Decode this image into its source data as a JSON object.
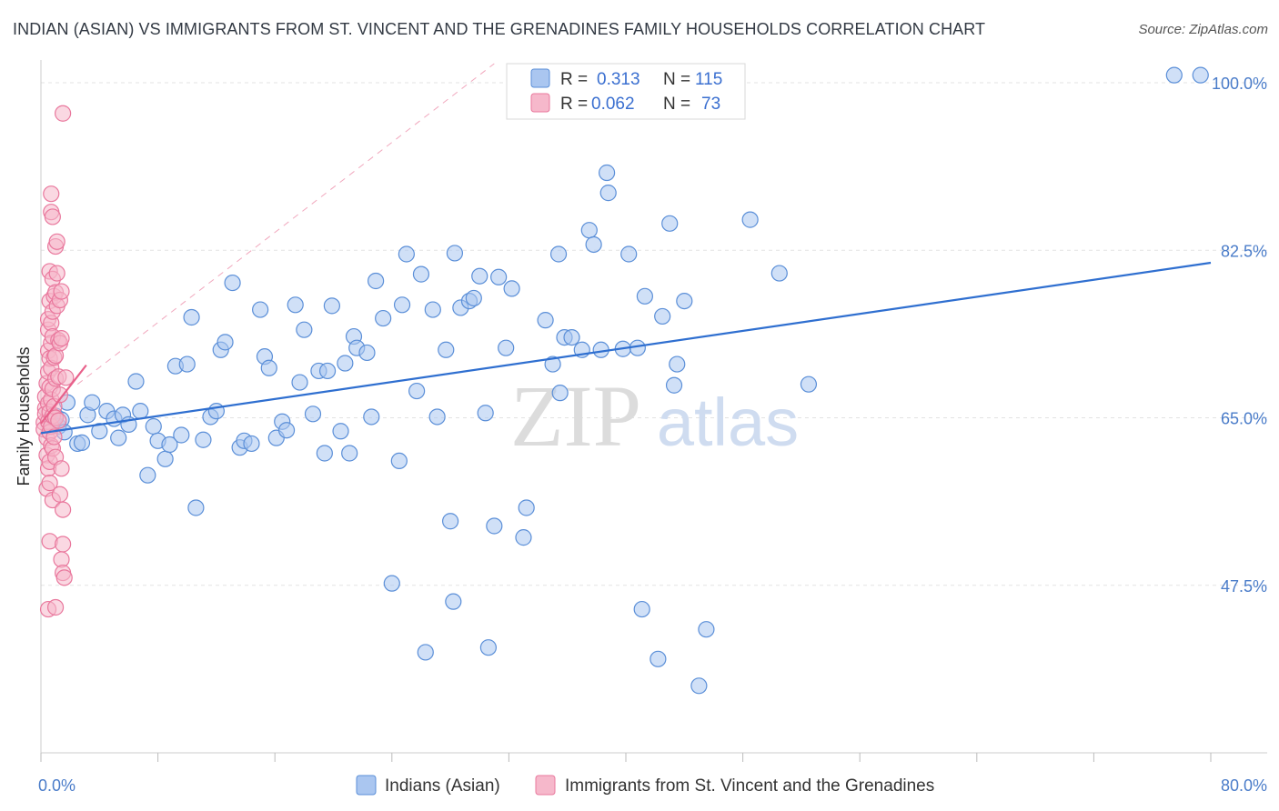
{
  "title": "INDIAN (ASIAN) VS IMMIGRANTS FROM ST. VINCENT AND THE GRENADINES FAMILY HOUSEHOLDS CORRELATION CHART",
  "source": "Source: ZipAtlas.com",
  "watermark": {
    "zip": "ZIP",
    "atlas": "atlas"
  },
  "colors": {
    "blue_fill": "#aac6f0",
    "blue_stroke": "#5b8fd8",
    "blue_line": "#2f6fd0",
    "pink_fill": "#f6b8cb",
    "pink_stroke": "#e9789d",
    "pink_line": "#e8608a",
    "grid": "#e3e3e3",
    "tick_text": "#4a7cc9"
  },
  "legend_stats": [
    {
      "r_label": "R =",
      "r_value": "0.313",
      "n_label": "N =",
      "n_value": "115",
      "color": "blue"
    },
    {
      "r_label": "R =",
      "r_value": "0.062",
      "n_label": "N =",
      "n_value": "73",
      "color": "pink"
    }
  ],
  "chart_data": {
    "type": "scatter",
    "ylabel": "Family Households",
    "xlabel": "",
    "xlim": [
      0,
      80
    ],
    "ylim": [
      30,
      102
    ],
    "x_tick_labels": [
      "0.0%",
      "80.0%"
    ],
    "y_ticks": [
      {
        "value": 100,
        "label": "100.0%"
      },
      {
        "value": 82.5,
        "label": "82.5%"
      },
      {
        "value": 65,
        "label": "65.0%"
      },
      {
        "value": 47.5,
        "label": "47.5%"
      }
    ],
    "grid": "horizontal dashed",
    "legend_position": "top-center",
    "series": [
      {
        "name": "Indians (Asian)",
        "color": "blue",
        "trend": {
          "x": [
            0,
            80
          ],
          "y": [
            63.4,
            81.2
          ]
        },
        "points": [
          [
            0.8,
            64.5
          ],
          [
            1.0,
            65.2
          ],
          [
            1.2,
            64.1
          ],
          [
            1.4,
            64.8
          ],
          [
            1.6,
            63.5
          ],
          [
            1.8,
            66.6
          ],
          [
            2.5,
            62.3
          ],
          [
            2.8,
            62.4
          ],
          [
            3.2,
            65.3
          ],
          [
            3.5,
            66.6
          ],
          [
            4.0,
            63.6
          ],
          [
            4.5,
            65.7
          ],
          [
            5.0,
            64.9
          ],
          [
            5.3,
            62.9
          ],
          [
            5.6,
            65.3
          ],
          [
            6.0,
            64.3
          ],
          [
            6.5,
            68.8
          ],
          [
            6.8,
            65.7
          ],
          [
            7.3,
            59.0
          ],
          [
            7.7,
            64.1
          ],
          [
            8.0,
            62.6
          ],
          [
            8.5,
            60.7
          ],
          [
            8.8,
            62.2
          ],
          [
            9.2,
            70.4
          ],
          [
            9.6,
            63.2
          ],
          [
            10.0,
            70.6
          ],
          [
            10.3,
            75.5
          ],
          [
            10.6,
            55.6
          ],
          [
            11.1,
            62.7
          ],
          [
            11.6,
            65.1
          ],
          [
            12.0,
            65.7
          ],
          [
            12.3,
            72.1
          ],
          [
            12.6,
            72.9
          ],
          [
            13.1,
            79.1
          ],
          [
            13.6,
            61.9
          ],
          [
            13.9,
            62.6
          ],
          [
            14.4,
            62.3
          ],
          [
            15.0,
            76.3
          ],
          [
            15.3,
            71.4
          ],
          [
            15.6,
            70.2
          ],
          [
            16.1,
            62.9
          ],
          [
            16.5,
            64.6
          ],
          [
            16.8,
            63.7
          ],
          [
            17.4,
            76.8
          ],
          [
            17.7,
            68.7
          ],
          [
            18.0,
            74.2
          ],
          [
            18.6,
            65.4
          ],
          [
            19.0,
            69.9
          ],
          [
            19.4,
            61.3
          ],
          [
            19.6,
            69.9
          ],
          [
            19.9,
            76.7
          ],
          [
            20.5,
            63.6
          ],
          [
            20.8,
            70.7
          ],
          [
            21.1,
            61.3
          ],
          [
            21.4,
            73.5
          ],
          [
            21.6,
            72.3
          ],
          [
            22.3,
            71.8
          ],
          [
            22.6,
            65.1
          ],
          [
            22.9,
            79.3
          ],
          [
            23.4,
            75.4
          ],
          [
            24.0,
            47.7
          ],
          [
            24.5,
            60.5
          ],
          [
            24.7,
            76.8
          ],
          [
            25.0,
            82.1
          ],
          [
            25.7,
            67.8
          ],
          [
            26.0,
            80.0
          ],
          [
            26.3,
            40.5
          ],
          [
            26.8,
            76.3
          ],
          [
            27.1,
            65.1
          ],
          [
            27.7,
            72.1
          ],
          [
            28.0,
            54.2
          ],
          [
            28.2,
            45.8
          ],
          [
            28.3,
            82.2
          ],
          [
            28.7,
            76.5
          ],
          [
            29.3,
            77.2
          ],
          [
            29.6,
            77.5
          ],
          [
            30.0,
            79.8
          ],
          [
            30.4,
            65.5
          ],
          [
            30.6,
            41.0
          ],
          [
            31.0,
            53.7
          ],
          [
            31.3,
            79.7
          ],
          [
            31.8,
            72.3
          ],
          [
            32.2,
            78.5
          ],
          [
            33.0,
            52.5
          ],
          [
            33.2,
            55.6
          ],
          [
            34.5,
            75.2
          ],
          [
            35.0,
            70.6
          ],
          [
            35.4,
            82.1
          ],
          [
            35.5,
            67.6
          ],
          [
            35.8,
            73.4
          ],
          [
            36.3,
            73.4
          ],
          [
            37.0,
            72.1
          ],
          [
            37.5,
            84.6
          ],
          [
            37.8,
            83.1
          ],
          [
            38.3,
            72.1
          ],
          [
            38.7,
            90.6
          ],
          [
            38.8,
            88.5
          ],
          [
            39.8,
            72.2
          ],
          [
            40.2,
            82.1
          ],
          [
            40.8,
            72.3
          ],
          [
            41.1,
            45.0
          ],
          [
            41.3,
            77.7
          ],
          [
            42.2,
            39.8
          ],
          [
            42.5,
            75.6
          ],
          [
            43.0,
            85.3
          ],
          [
            43.3,
            68.4
          ],
          [
            43.5,
            70.6
          ],
          [
            44.0,
            77.2
          ],
          [
            45.0,
            37.0
          ],
          [
            45.5,
            42.9
          ],
          [
            48.5,
            85.7
          ],
          [
            50.5,
            80.1
          ],
          [
            52.5,
            68.5
          ],
          [
            77.5,
            100.8
          ],
          [
            79.3,
            100.8
          ]
        ]
      },
      {
        "name": "Immigrants from St. Vincent and the Grenadines",
        "color": "pink",
        "trend": {
          "x": [
            0,
            3.1
          ],
          "y": [
            64.4,
            70.5
          ]
        },
        "points": [
          [
            0.2,
            64.5
          ],
          [
            0.2,
            63.8
          ],
          [
            0.3,
            66.0
          ],
          [
            0.3,
            67.2
          ],
          [
            0.3,
            65.4
          ],
          [
            0.4,
            68.6
          ],
          [
            0.4,
            62.9
          ],
          [
            0.4,
            61.1
          ],
          [
            0.4,
            57.6
          ],
          [
            0.5,
            72.0
          ],
          [
            0.5,
            74.2
          ],
          [
            0.5,
            75.3
          ],
          [
            0.5,
            69.8
          ],
          [
            0.5,
            66.5
          ],
          [
            0.5,
            64.6
          ],
          [
            0.5,
            59.7
          ],
          [
            0.5,
            45.0
          ],
          [
            0.6,
            80.3
          ],
          [
            0.6,
            77.2
          ],
          [
            0.6,
            71.2
          ],
          [
            0.6,
            68.2
          ],
          [
            0.6,
            65.6
          ],
          [
            0.6,
            63.5
          ],
          [
            0.6,
            60.4
          ],
          [
            0.6,
            58.2
          ],
          [
            0.6,
            52.1
          ],
          [
            0.7,
            88.4
          ],
          [
            0.7,
            86.5
          ],
          [
            0.7,
            74.9
          ],
          [
            0.7,
            72.8
          ],
          [
            0.7,
            70.2
          ],
          [
            0.7,
            66.9
          ],
          [
            0.7,
            64.1
          ],
          [
            0.7,
            62.1
          ],
          [
            0.8,
            86.0
          ],
          [
            0.8,
            79.5
          ],
          [
            0.8,
            76.1
          ],
          [
            0.8,
            73.5
          ],
          [
            0.8,
            68.0
          ],
          [
            0.8,
            65.2
          ],
          [
            0.8,
            61.8
          ],
          [
            0.8,
            56.4
          ],
          [
            0.9,
            77.7
          ],
          [
            0.9,
            71.3
          ],
          [
            0.9,
            66.2
          ],
          [
            0.9,
            63.0
          ],
          [
            1.0,
            82.9
          ],
          [
            1.0,
            78.1
          ],
          [
            1.0,
            71.5
          ],
          [
            1.0,
            69.1
          ],
          [
            1.0,
            65.0
          ],
          [
            1.0,
            60.9
          ],
          [
            1.0,
            45.2
          ],
          [
            1.1,
            83.4
          ],
          [
            1.1,
            80.1
          ],
          [
            1.1,
            76.7
          ],
          [
            1.2,
            73.1
          ],
          [
            1.2,
            69.3
          ],
          [
            1.2,
            64.7
          ],
          [
            1.3,
            77.3
          ],
          [
            1.3,
            72.8
          ],
          [
            1.3,
            67.4
          ],
          [
            1.3,
            57.0
          ],
          [
            1.4,
            78.2
          ],
          [
            1.4,
            73.3
          ],
          [
            1.4,
            59.7
          ],
          [
            1.4,
            50.2
          ],
          [
            1.5,
            96.8
          ],
          [
            1.5,
            55.4
          ],
          [
            1.5,
            51.8
          ],
          [
            1.5,
            48.8
          ],
          [
            1.6,
            48.3
          ],
          [
            1.7,
            69.2
          ]
        ]
      }
    ]
  }
}
